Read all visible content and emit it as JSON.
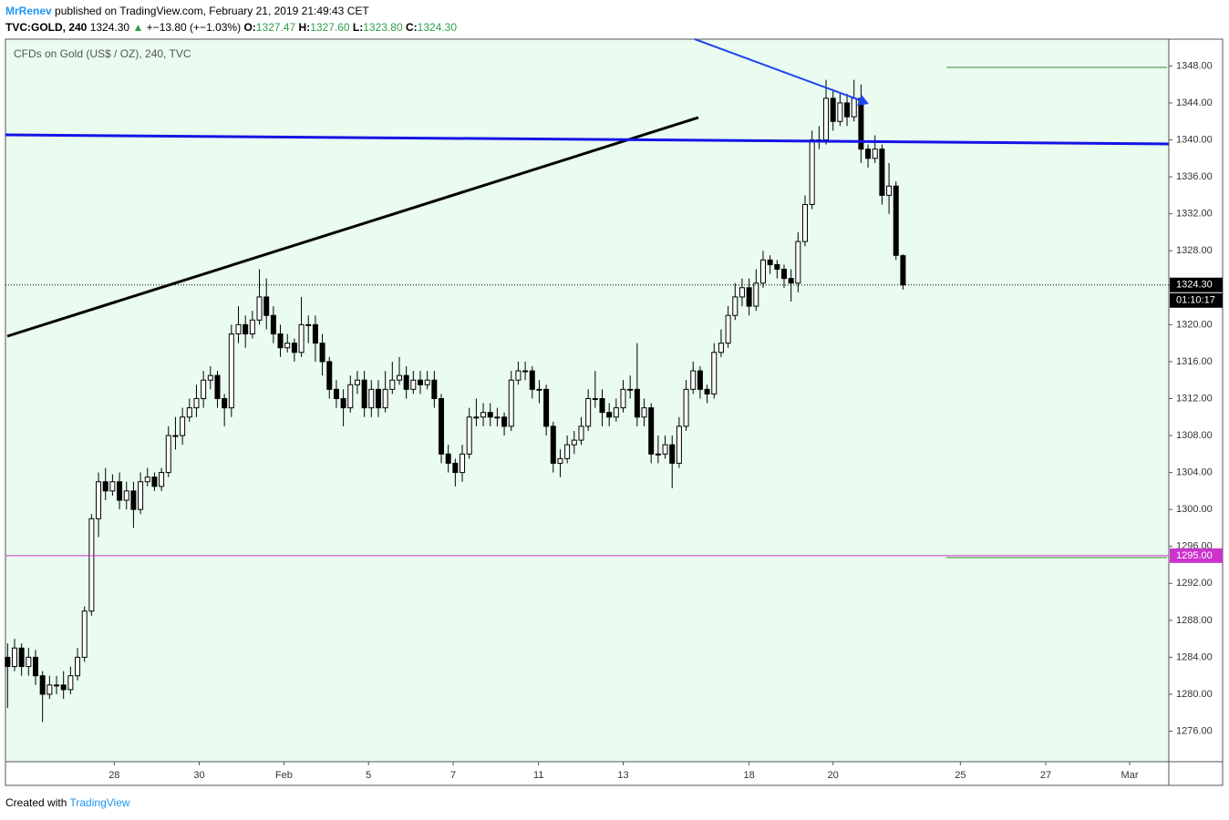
{
  "header": {
    "author": "MrRenev",
    "published": "published on TradingView.com, February 21, 2019 21:49:43 CET",
    "symbol": "TVC:GOLD, 240",
    "last": "1324.30",
    "arrow": "▲",
    "change": "+−13.80 (+−1.03%)",
    "ohlc": [
      {
        "label": "O:",
        "value": "1327.47"
      },
      {
        "label": "H:",
        "value": "1327.60"
      },
      {
        "label": "L:",
        "value": "1323.80"
      },
      {
        "label": "C:",
        "value": "1324.30"
      }
    ]
  },
  "chart_data": {
    "type": "candlestick",
    "title": "CFDs on Gold (US$ / OZ), 240, TVC",
    "open": [
      1284,
      1283,
      1285,
      1283,
      1284,
      1282,
      1280,
      1281,
      1281,
      1280.5,
      1282,
      1284,
      1289,
      1299,
      1303,
      1302,
      1303,
      1301,
      1302,
      1300,
      1303,
      1303.5,
      1302.5,
      1304,
      1308,
      1308,
      1310,
      1311,
      1312,
      1314,
      1314.5,
      1312,
      1311,
      1319,
      1320,
      1319,
      1320.5,
      1323,
      1321,
      1319,
      1317.5,
      1318,
      1317,
      1320,
      1320,
      1318,
      1316,
      1313,
      1312,
      1311,
      1313.5,
      1314,
      1311,
      1313,
      1311,
      1313,
      1314,
      1314.5,
      1313,
      1314,
      1313.5,
      1314,
      1312,
      1306,
      1305,
      1304,
      1306,
      1310,
      1310,
      1310.5,
      1310,
      1310,
      1309,
      1314,
      1315,
      1315,
      1313,
      1313,
      1309,
      1305,
      1305.5,
      1307,
      1307.5,
      1309,
      1312,
      1312,
      1310.5,
      1310,
      1311,
      1313,
      1313,
      1310,
      1311,
      1306,
      1306,
      1307,
      1305,
      1309,
      1313,
      1315,
      1313,
      1312.5,
      1317,
      1318,
      1321,
      1323,
      1324,
      1322,
      1324.5,
      1327,
      1326.5,
      1326,
      1325,
      1324.5,
      1329,
      1333,
      1340,
      1340,
      1344.5,
      1342,
      1344,
      1342.5,
      1344.5,
      1339,
      1338,
      1339,
      1334,
      1335,
      1327.47
    ],
    "high": [
      1285.5,
      1286,
      1285.5,
      1285,
      1284.8,
      1282.5,
      1282,
      1282,
      1282.5,
      1283,
      1285,
      1289.5,
      1299.5,
      1304,
      1304.5,
      1303.8,
      1304,
      1303,
      1303,
      1304,
      1304.5,
      1304,
      1304.5,
      1309,
      1310,
      1311,
      1312,
      1313.5,
      1315,
      1315.5,
      1315,
      1312.5,
      1320,
      1322,
      1321,
      1321.5,
      1326,
      1325,
      1322,
      1320,
      1319,
      1318.5,
      1323,
      1321,
      1321,
      1319,
      1316.5,
      1314,
      1313,
      1314.5,
      1315,
      1315,
      1314,
      1314,
      1315,
      1316,
      1316.5,
      1315.5,
      1315,
      1315,
      1315,
      1315,
      1312.5,
      1307,
      1305.5,
      1307,
      1311,
      1312,
      1311.5,
      1311.5,
      1311,
      1310.5,
      1315,
      1316,
      1316,
      1315.5,
      1314,
      1313.5,
      1309.5,
      1306.5,
      1308,
      1308.5,
      1310,
      1313,
      1315,
      1313,
      1311.5,
      1312,
      1314,
      1314.5,
      1318,
      1312,
      1311.5,
      1308,
      1308,
      1308,
      1310,
      1314,
      1316,
      1315.5,
      1313.5,
      1318,
      1319.5,
      1322,
      1324.5,
      1325,
      1325,
      1326,
      1328,
      1327.5,
      1327,
      1326.5,
      1326,
      1330,
      1334,
      1341,
      1341.5,
      1346.5,
      1345.5,
      1345,
      1345,
      1346.5,
      1346,
      1339.5,
      1340.5,
      1339.5,
      1337.5,
      1335.5,
      1327.6
    ],
    "low": [
      1278.5,
      1282.5,
      1282,
      1282,
      1281,
      1277,
      1279.5,
      1280,
      1279.5,
      1280,
      1281.5,
      1283.5,
      1288.5,
      1297,
      1301,
      1301.5,
      1300,
      1300,
      1298,
      1299.5,
      1302.5,
      1302,
      1302,
      1303.5,
      1306.5,
      1307,
      1309.5,
      1310,
      1311,
      1313,
      1311,
      1309,
      1310,
      1318,
      1317.5,
      1318.5,
      1320,
      1319.5,
      1318,
      1316.5,
      1317,
      1316,
      1316.5,
      1318,
      1316,
      1314.5,
      1312,
      1311,
      1309,
      1310.5,
      1312.5,
      1310,
      1310,
      1310,
      1310.5,
      1312.5,
      1313.5,
      1312,
      1312.5,
      1312.5,
      1313,
      1311,
      1305,
      1304,
      1302.5,
      1303,
      1305.5,
      1309,
      1309,
      1309,
      1309,
      1308,
      1308.5,
      1313.5,
      1314,
      1312,
      1311.5,
      1308,
      1304,
      1303.5,
      1305,
      1306,
      1307,
      1308.5,
      1311,
      1309,
      1309,
      1309.5,
      1310.5,
      1312,
      1309,
      1309,
      1305,
      1305,
      1305.5,
      1302.3,
      1304.5,
      1308.5,
      1312.5,
      1312,
      1311.5,
      1312,
      1316.5,
      1317.5,
      1320.5,
      1322,
      1321,
      1321.5,
      1324,
      1325.5,
      1325,
      1324,
      1322.5,
      1323.5,
      1328.5,
      1332.5,
      1339,
      1339.5,
      1341,
      1341.5,
      1341.5,
      1342,
      1337.5,
      1337,
      1337.5,
      1333,
      1332,
      1327,
      1323.8
    ],
    "close": [
      1283,
      1285,
      1283,
      1284,
      1282,
      1280,
      1281,
      1281,
      1280.5,
      1282,
      1284,
      1289,
      1299,
      1303,
      1302,
      1303,
      1301,
      1302,
      1300,
      1303,
      1303.5,
      1302.5,
      1304,
      1308,
      1308,
      1310,
      1311,
      1312,
      1314,
      1314.5,
      1312,
      1311,
      1319,
      1320,
      1319,
      1320.5,
      1323,
      1321,
      1319,
      1317.5,
      1318,
      1317,
      1320,
      1320,
      1318,
      1316,
      1313,
      1312,
      1311,
      1313.5,
      1314,
      1311,
      1313,
      1311,
      1313,
      1314,
      1314.5,
      1313,
      1314,
      1313.5,
      1314,
      1312,
      1306,
      1305,
      1304,
      1306,
      1310,
      1310,
      1310.5,
      1310,
      1310,
      1309,
      1314,
      1315,
      1315,
      1313,
      1313,
      1309,
      1305,
      1305.5,
      1307,
      1307.5,
      1309,
      1312,
      1312,
      1310.5,
      1310,
      1311,
      1313,
      1313,
      1310,
      1311,
      1306,
      1306,
      1307,
      1305,
      1309,
      1313,
      1315,
      1313,
      1312.5,
      1317,
      1318,
      1321,
      1323,
      1324,
      1322,
      1324.5,
      1327,
      1326.5,
      1326,
      1325,
      1324.5,
      1329,
      1333,
      1340,
      1340,
      1344.5,
      1342,
      1344,
      1342.5,
      1344.5,
      1339,
      1338,
      1339,
      1334,
      1335,
      1327.5,
      1324.3
    ],
    "up_color": "#ffffff",
    "down_color": "#000000",
    "background": "#e9fcef",
    "xlim": [
      -0.3,
      166
    ],
    "xticks": [
      {
        "value": 15.25,
        "label": "28"
      },
      {
        "value": 27.4,
        "label": "30"
      },
      {
        "value": 39.5,
        "label": "Feb"
      },
      {
        "value": 51.6,
        "label": "5"
      },
      {
        "value": 63.7,
        "label": "7"
      },
      {
        "value": 75.9,
        "label": "11"
      },
      {
        "value": 88,
        "label": "13"
      },
      {
        "value": 106,
        "label": "18"
      },
      {
        "value": 118,
        "label": "20"
      },
      {
        "value": 136.2,
        "label": "25"
      },
      {
        "value": 148.4,
        "label": "27"
      },
      {
        "value": 160.4,
        "label": "Mar"
      }
    ],
    "ylim": [
      1272.7,
      1350.9
    ],
    "yticks": [
      {
        "value": 1276,
        "label": "1276.00"
      },
      {
        "value": 1280,
        "label": "1280.00"
      },
      {
        "value": 1284,
        "label": "1284.00"
      },
      {
        "value": 1288,
        "label": "1288.00"
      },
      {
        "value": 1292,
        "label": "1292.00"
      },
      {
        "value": 1296,
        "label": "1296.00"
      },
      {
        "value": 1300,
        "label": "1300.00"
      },
      {
        "value": 1304,
        "label": "1304.00"
      },
      {
        "value": 1308,
        "label": "1308.00"
      },
      {
        "value": 1312,
        "label": "1312.00"
      },
      {
        "value": 1316,
        "label": "1316.00"
      },
      {
        "value": 1320,
        "label": "1320.00"
      },
      {
        "value": 1324,
        "label": "1324.00"
      },
      {
        "value": 1328,
        "label": "1328.00"
      },
      {
        "value": 1332,
        "label": "1332.00"
      },
      {
        "value": 1336,
        "label": "1336.00"
      },
      {
        "value": 1340,
        "label": "1340.00"
      },
      {
        "value": 1344,
        "label": "1344.00"
      },
      {
        "value": 1348,
        "label": "1348.00"
      }
    ],
    "price_line": {
      "value": 1324.3,
      "label": "1324.30"
    },
    "countdown": "01:10:17",
    "level": {
      "value": 1295,
      "label": "1295.00",
      "color": "#cc33cc"
    }
  },
  "footer": {
    "text": "Created with",
    "brand": "TradingView"
  }
}
